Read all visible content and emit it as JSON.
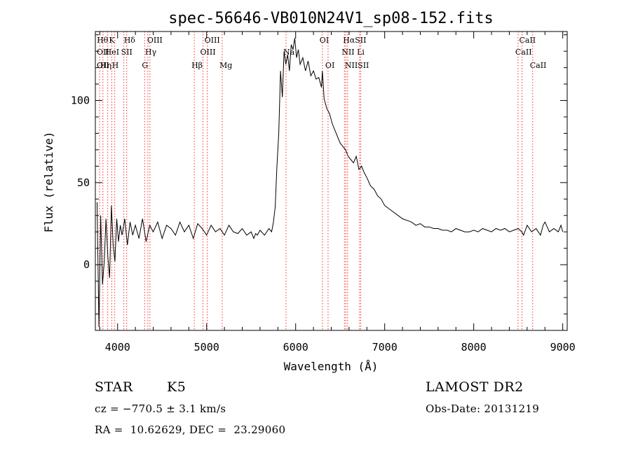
{
  "chart_data": {
    "type": "line",
    "title": "spec-56646-VB010N24V1_sp08-152.fits",
    "xlabel": "Wavelength (Å)",
    "ylabel": "Flux (relative)",
    "xlim": [
      3750,
      9050
    ],
    "ylim": [
      -40,
      142
    ],
    "xticks": [
      4000,
      5000,
      6000,
      7000,
      8000,
      9000
    ],
    "xtick_labels": [
      "4000",
      "5000",
      "6000",
      "7000",
      "8000",
      "9000"
    ],
    "yticks": [
      0,
      50,
      100
    ],
    "ytick_labels": [
      "0",
      "50",
      "100"
    ],
    "grid": false,
    "series": [
      {
        "x": [
          3770,
          3790,
          3810,
          3830,
          3850,
          3870,
          3890,
          3910,
          3930,
          3950,
          3970,
          3990,
          4010,
          4030,
          4050,
          4080,
          4110,
          4140,
          4170,
          4200,
          4240,
          4280,
          4320,
          4360,
          4400,
          4450,
          4500,
          4550,
          4600,
          4650,
          4700,
          4750,
          4800,
          4850,
          4900,
          4950,
          5000,
          5050,
          5100,
          5150,
          5200,
          5250,
          5300,
          5350,
          5400,
          5450,
          5500,
          5530,
          5550,
          5570,
          5600,
          5650,
          5700,
          5730,
          5750,
          5770,
          5790,
          5810,
          5830,
          5850,
          5870,
          5890,
          5910,
          5930,
          5950,
          5970,
          5990,
          6010,
          6030,
          6050,
          6080,
          6110,
          6140,
          6170,
          6200,
          6230,
          6260,
          6290,
          6300,
          6320,
          6350,
          6380,
          6410,
          6440,
          6470,
          6500,
          6530,
          6560,
          6590,
          6620,
          6650,
          6680,
          6710,
          6740,
          6770,
          6800,
          6840,
          6880,
          6920,
          6960,
          7000,
          7050,
          7100,
          7150,
          7200,
          7250,
          7300,
          7350,
          7400,
          7450,
          7500,
          7550,
          7600,
          7650,
          7700,
          7750,
          7800,
          7850,
          7900,
          7950,
          8000,
          8050,
          8100,
          8150,
          8200,
          8250,
          8300,
          8350,
          8400,
          8450,
          8500,
          8540,
          8560,
          8600,
          8650,
          8700,
          8750,
          8780,
          8800,
          8850,
          8900,
          8950,
          8980,
          9000
        ],
        "y": [
          38,
          -38,
          30,
          -12,
          2,
          28,
          5,
          -8,
          36,
          12,
          2,
          28,
          14,
          24,
          18,
          28,
          12,
          26,
          18,
          24,
          16,
          28,
          14,
          24,
          20,
          26,
          16,
          24,
          22,
          18,
          26,
          20,
          24,
          16,
          25,
          22,
          18,
          24,
          20,
          22,
          18,
          24,
          20,
          19,
          22,
          18,
          20,
          16,
          19,
          18,
          21,
          18,
          22,
          20,
          26,
          35,
          60,
          80,
          118,
          102,
          130,
          122,
          128,
          118,
          134,
          131,
          138,
          126,
          131,
          122,
          126,
          118,
          124,
          115,
          118,
          113,
          114,
          108,
          118,
          101,
          95,
          92,
          86,
          82,
          78,
          74,
          72,
          70,
          66,
          64,
          62,
          66,
          58,
          60,
          56,
          53,
          48,
          46,
          42,
          40,
          36,
          34,
          32,
          30,
          28,
          27,
          26,
          24,
          25,
          23,
          23,
          22,
          22,
          21,
          21,
          20,
          22,
          21,
          20,
          20,
          21,
          20,
          22,
          21,
          20,
          22,
          21,
          22,
          20,
          21,
          22,
          20,
          18,
          24,
          20,
          22,
          18,
          24,
          26,
          20,
          22,
          20,
          24,
          20
        ]
      }
    ],
    "line_ids": {
      "row1": [
        {
          "x": 3798,
          "label": "Hθ"
        },
        {
          "x": 3934,
          "label": "K"
        },
        {
          "x": 4102,
          "label": "Hδ"
        },
        {
          "x": 4363,
          "label": "OIII"
        },
        {
          "x": 5007,
          "label": "OIII"
        },
        {
          "x": 6300,
          "label": "OI"
        },
        {
          "x": 6563,
          "label": "HαSII"
        },
        {
          "x": 8542,
          "label": "CaII"
        }
      ],
      "row2": [
        {
          "x": 3727,
          "label": "OII"
        },
        {
          "x": 3889,
          "label": "HeI"
        },
        {
          "x": 4070,
          "label": "SII"
        },
        {
          "x": 4340,
          "label": "Hγ"
        },
        {
          "x": 4959,
          "label": "OIII"
        },
        {
          "x": 5892,
          "label": "Na"
        },
        {
          "x": 6548,
          "label": "NII Li"
        },
        {
          "x": 8498,
          "label": "CaII"
        }
      ],
      "row3": [
        {
          "x": 3729,
          "label": "OII"
        },
        {
          "x": 3835,
          "label": "Hη"
        },
        {
          "x": 3968,
          "label": "H"
        },
        {
          "x": 4304,
          "label": "G"
        },
        {
          "x": 4861,
          "label": "Hβ"
        },
        {
          "x": 5175,
          "label": "Mg"
        },
        {
          "x": 6364,
          "label": "OI"
        },
        {
          "x": 6584,
          "label": "NIISII"
        },
        {
          "x": 8662,
          "label": "CaII"
        }
      ]
    },
    "line_marker_waves": [
      3798,
      3835,
      3889,
      3934,
      3968,
      4070,
      4102,
      4304,
      4340,
      4363,
      4861,
      4959,
      5007,
      5175,
      5892,
      6300,
      6364,
      6548,
      6563,
      6584,
      6717,
      6731,
      8498,
      8542,
      8662
    ],
    "colors": {
      "spectrum": "#000000",
      "line_marker": "#ff2a2a"
    }
  },
  "info": {
    "object_type": "STAR",
    "subclass": "K5",
    "survey": "LAMOST DR2",
    "cz": "cz = −770.5 ± 3.1 km/s",
    "obs_date": "Obs-Date: 20131219",
    "radec": "RA =  10.62629, DEC =  23.29060"
  }
}
